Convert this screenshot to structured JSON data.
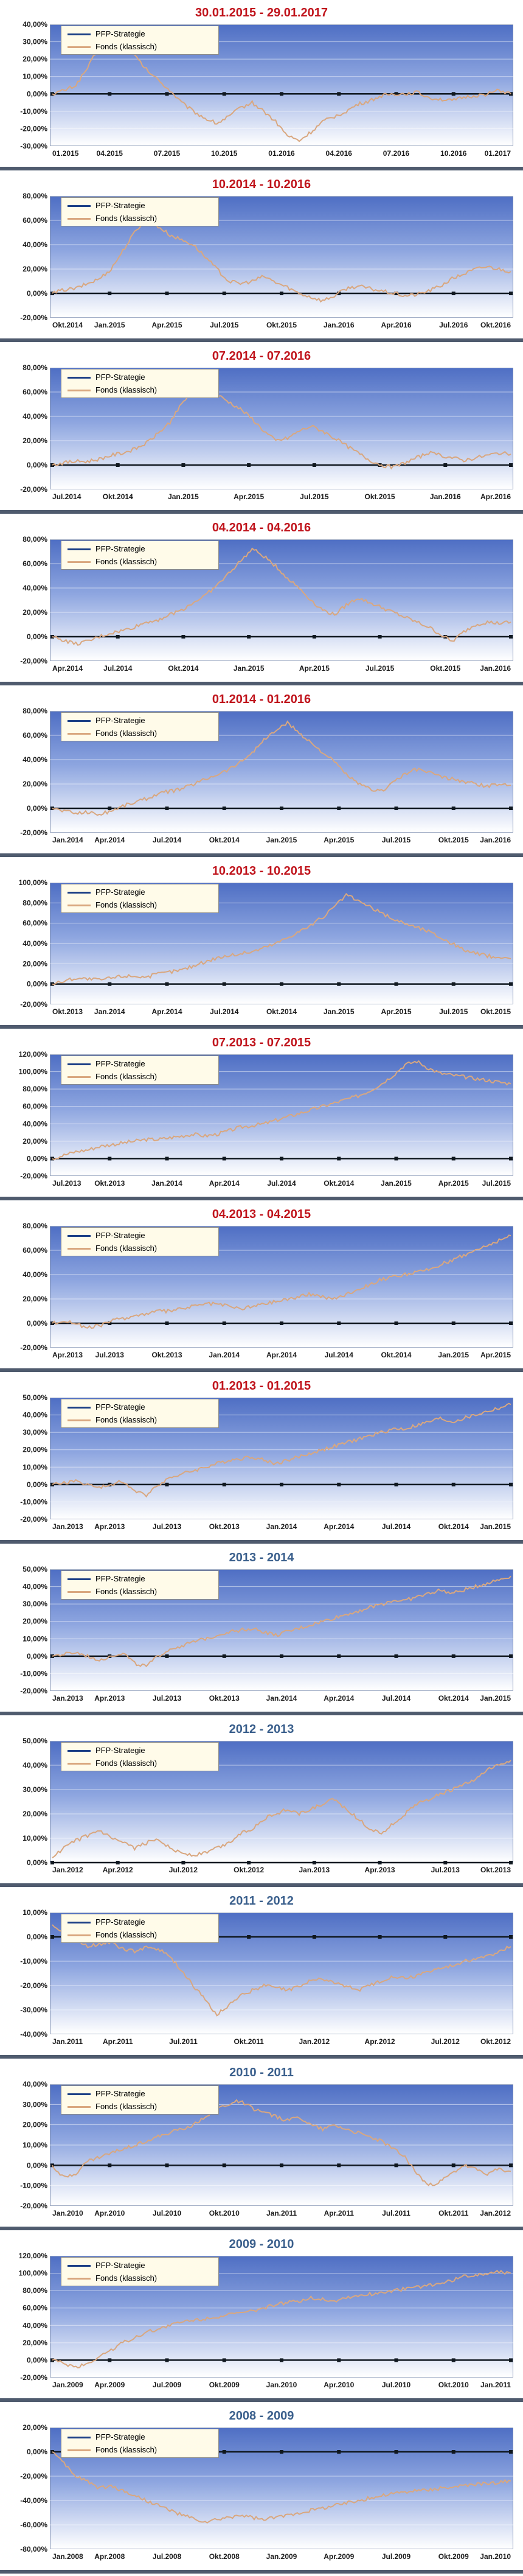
{
  "chart_data": [
    {
      "type": "line",
      "title": "30.01.2015 - 29.01.2017",
      "title_color": "#c0141c",
      "series": [
        {
          "name": "PFP-Strategie",
          "color": "#1c3f86"
        },
        {
          "name": "Fonds (klassisch)",
          "color": "#d9a77f"
        }
      ],
      "yticks": [
        "40,00%",
        "30,00%",
        "20,00%",
        "10,00%",
        "0,00%",
        "-10,00%",
        "-20,00%",
        "-30,00%"
      ],
      "ylim": [
        -30,
        40
      ],
      "xticks": [
        "01.2015",
        "04.2015",
        "07.2015",
        "10.2015",
        "01.2016",
        "04.2016",
        "07.2016",
        "10.2016",
        "01.2017"
      ],
      "fonds": [
        0,
        2,
        5,
        15,
        27,
        33,
        29,
        22,
        14,
        8,
        2,
        -5,
        -10,
        -14,
        -17,
        -13,
        -8,
        -5,
        -10,
        -16,
        -24,
        -27,
        -22,
        -16,
        -13,
        -10,
        -6,
        -4,
        -1,
        0,
        0,
        1,
        -2,
        -3,
        -4,
        -2,
        -1,
        0,
        2,
        0
      ]
    },
    {
      "type": "line",
      "title": "10.2014 - 10.2016",
      "title_color": "#c0141c",
      "series": [
        {
          "name": "PFP-Strategie",
          "color": "#1c3f86"
        },
        {
          "name": "Fonds (klassisch)",
          "color": "#d9a77f"
        }
      ],
      "yticks": [
        "80,00%",
        "60,00%",
        "40,00%",
        "20,00%",
        "0,00%",
        "-20,00%"
      ],
      "ylim": [
        -20,
        80
      ],
      "xticks": [
        "Okt.2014",
        "Jan.2015",
        "Apr.2015",
        "Jul.2015",
        "Okt.2015",
        "Jan.2016",
        "Apr.2016",
        "Jul.2016",
        "Okt.2016"
      ],
      "fonds": [
        0,
        3,
        4,
        8,
        12,
        20,
        35,
        50,
        62,
        55,
        48,
        44,
        40,
        30,
        20,
        10,
        8,
        10,
        14,
        9,
        5,
        0,
        -3,
        -6,
        -2,
        4,
        6,
        4,
        2,
        0,
        -2,
        -1,
        2,
        6,
        12,
        16,
        20,
        22,
        20,
        18
      ]
    },
    {
      "type": "line",
      "title": "07.2014 - 07.2016",
      "title_color": "#c0141c",
      "series": [
        {
          "name": "PFP-Strategie",
          "color": "#1c3f86"
        },
        {
          "name": "Fonds (klassisch)",
          "color": "#d9a77f"
        }
      ],
      "yticks": [
        "80,00%",
        "60,00%",
        "40,00%",
        "20,00%",
        "0,00%",
        "-20,00%"
      ],
      "ylim": [
        -20,
        80
      ],
      "xticks": [
        "Jul.2014",
        "Okt.2014",
        "Jan.2015",
        "Apr.2015",
        "Jul.2015",
        "Okt.2015",
        "Jan.2016",
        "Apr.2016"
      ],
      "fonds": [
        0,
        2,
        3,
        3,
        5,
        8,
        10,
        13,
        18,
        26,
        35,
        50,
        62,
        66,
        58,
        52,
        46,
        38,
        28,
        20,
        22,
        28,
        32,
        28,
        22,
        16,
        10,
        4,
        0,
        -2,
        2,
        6,
        10,
        8,
        6,
        4,
        6,
        8,
        10,
        9
      ]
    },
    {
      "type": "line",
      "title": "04.2014 - 04.2016",
      "title_color": "#c0141c",
      "series": [
        {
          "name": "PFP-Strategie",
          "color": "#1c3f86"
        },
        {
          "name": "Fonds (klassisch)",
          "color": "#d9a77f"
        }
      ],
      "yticks": [
        "80,00%",
        "60,00%",
        "40,00%",
        "20,00%",
        "0,00%",
        "-20,00%"
      ],
      "ylim": [
        -20,
        80
      ],
      "xticks": [
        "Apr.2014",
        "Jul.2014",
        "Okt.2014",
        "Jan.2015",
        "Apr.2015",
        "Jul.2015",
        "Okt.2015",
        "Jan.2016"
      ],
      "fonds": [
        0,
        -3,
        -6,
        -4,
        0,
        3,
        5,
        8,
        12,
        14,
        18,
        22,
        28,
        34,
        42,
        52,
        62,
        72,
        66,
        58,
        48,
        40,
        30,
        22,
        18,
        26,
        32,
        28,
        24,
        20,
        16,
        12,
        8,
        2,
        -4,
        4,
        10,
        12,
        11,
        12
      ]
    },
    {
      "type": "line",
      "title": "01.2014 - 01.2016",
      "title_color": "#c0141c",
      "series": [
        {
          "name": "PFP-Strategie",
          "color": "#1c3f86"
        },
        {
          "name": "Fonds (klassisch)",
          "color": "#d9a77f"
        }
      ],
      "yticks": [
        "80,00%",
        "60,00%",
        "40,00%",
        "20,00%",
        "0,00%",
        "-20,00%"
      ],
      "ylim": [
        -20,
        80
      ],
      "xticks": [
        "Jan.2014",
        "Apr.2014",
        "Jul.2014",
        "Okt.2014",
        "Jan.2015",
        "Apr.2015",
        "Jul.2015",
        "Okt.2015",
        "Jan.2016"
      ],
      "fonds": [
        0,
        -2,
        -4,
        -3,
        -5,
        -2,
        2,
        5,
        8,
        12,
        14,
        16,
        20,
        24,
        28,
        32,
        38,
        46,
        56,
        64,
        70,
        62,
        54,
        46,
        38,
        28,
        20,
        16,
        14,
        22,
        28,
        32,
        30,
        26,
        24,
        22,
        20,
        18,
        20,
        19
      ]
    },
    {
      "type": "line",
      "title": "10.2013 - 10.2015",
      "title_color": "#c0141c",
      "series": [
        {
          "name": "PFP-Strategie",
          "color": "#1c3f86"
        },
        {
          "name": "Fonds (klassisch)",
          "color": "#d9a77f"
        }
      ],
      "yticks": [
        "100,00%",
        "80,00%",
        "60,00%",
        "40,00%",
        "20,00%",
        "0,00%",
        "-20,00%"
      ],
      "ylim": [
        -20,
        100
      ],
      "xticks": [
        "Okt.2013",
        "Jan.2014",
        "Apr.2014",
        "Jul.2014",
        "Okt.2014",
        "Jan.2015",
        "Apr.2015",
        "Jul.2015",
        "Okt.2015"
      ],
      "fonds": [
        0,
        3,
        6,
        5,
        4,
        6,
        8,
        8,
        7,
        10,
        12,
        14,
        18,
        22,
        26,
        28,
        30,
        32,
        36,
        40,
        46,
        52,
        58,
        66,
        76,
        88,
        82,
        76,
        70,
        64,
        60,
        56,
        52,
        46,
        40,
        34,
        30,
        28,
        26,
        25
      ]
    },
    {
      "type": "line",
      "title": "07.2013 - 07.2015",
      "title_color": "#c0141c",
      "series": [
        {
          "name": "PFP-Strategie",
          "color": "#1c3f86"
        },
        {
          "name": "Fonds (klassisch)",
          "color": "#d9a77f"
        }
      ],
      "yticks": [
        "120,00%",
        "100,00%",
        "80,00%",
        "60,00%",
        "40,00%",
        "20,00%",
        "0,00%",
        "-20,00%"
      ],
      "ylim": [
        -20,
        120
      ],
      "xticks": [
        "Jul.2013",
        "Okt.2013",
        "Jan.2014",
        "Apr.2014",
        "Jul.2014",
        "Okt.2014",
        "Jan.2015",
        "Apr.2015",
        "Jul.2015"
      ],
      "fonds": [
        0,
        4,
        8,
        10,
        14,
        16,
        18,
        20,
        22,
        22,
        24,
        26,
        28,
        26,
        28,
        32,
        36,
        38,
        40,
        44,
        48,
        52,
        56,
        60,
        64,
        68,
        72,
        78,
        86,
        96,
        108,
        112,
        104,
        98,
        96,
        94,
        92,
        90,
        88,
        86
      ]
    },
    {
      "type": "line",
      "title": "04.2013 - 04.2015",
      "title_color": "#c0141c",
      "series": [
        {
          "name": "PFP-Strategie",
          "color": "#1c3f86"
        },
        {
          "name": "Fonds (klassisch)",
          "color": "#d9a77f"
        }
      ],
      "yticks": [
        "80,00%",
        "60,00%",
        "40,00%",
        "20,00%",
        "0,00%",
        "-20,00%"
      ],
      "ylim": [
        -20,
        80
      ],
      "xticks": [
        "Apr.2013",
        "Jul.2013",
        "Okt.2013",
        "Jan.2014",
        "Apr.2014",
        "Jul.2014",
        "Okt.2014",
        "Jan.2015",
        "Apr.2015"
      ],
      "fonds": [
        0,
        2,
        0,
        -4,
        -2,
        2,
        4,
        6,
        8,
        10,
        10,
        12,
        14,
        16,
        16,
        14,
        12,
        14,
        16,
        18,
        20,
        22,
        24,
        22,
        20,
        24,
        28,
        32,
        36,
        38,
        40,
        42,
        44,
        48,
        52,
        56,
        60,
        64,
        68,
        72
      ]
    },
    {
      "type": "line",
      "title": "01.2013 - 01.2015",
      "title_color": "#c0141c",
      "series": [
        {
          "name": "PFP-Strategie",
          "color": "#1c3f86"
        },
        {
          "name": "Fonds (klassisch)",
          "color": "#d9a77f"
        }
      ],
      "yticks": [
        "50,00%",
        "40,00%",
        "30,00%",
        "20,00%",
        "10,00%",
        "0,00%",
        "-10,00%",
        "-20,00%"
      ],
      "ylim": [
        -20,
        50
      ],
      "xticks": [
        "Jan.2013",
        "Apr.2013",
        "Jul.2013",
        "Okt.2013",
        "Jan.2014",
        "Apr.2014",
        "Jul.2014",
        "Okt.2014",
        "Jan.2015"
      ],
      "fonds": [
        0,
        1,
        2,
        0,
        -2,
        0,
        2,
        -4,
        -6,
        0,
        4,
        6,
        8,
        10,
        12,
        14,
        15,
        16,
        14,
        12,
        14,
        16,
        18,
        20,
        22,
        24,
        26,
        28,
        30,
        32,
        32,
        34,
        36,
        38,
        36,
        38,
        40,
        42,
        44,
        46
      ]
    },
    {
      "type": "line",
      "title": "2013 - 2014",
      "title_color": "#3a5f8c",
      "series": [
        {
          "name": "PFP-Strategie",
          "color": "#1c3f86"
        },
        {
          "name": "Fonds (klassisch)",
          "color": "#d9a77f"
        }
      ],
      "yticks": [
        "50,00%",
        "40,00%",
        "30,00%",
        "20,00%",
        "10,00%",
        "0,00%",
        "-10,00%",
        "-20,00%"
      ],
      "ylim": [
        -20,
        50
      ],
      "xticks": [
        "Jan.2013",
        "Apr.2013",
        "Jul.2013",
        "Okt.2013",
        "Jan.2014",
        "Apr.2014",
        "Jul.2014",
        "Okt.2014",
        "Jan.2015"
      ],
      "fonds": [
        0,
        1,
        2,
        0,
        -2,
        0,
        2,
        -4,
        -6,
        0,
        4,
        6,
        8,
        10,
        12,
        14,
        15,
        16,
        14,
        12,
        14,
        16,
        18,
        20,
        22,
        24,
        26,
        28,
        30,
        32,
        32,
        34,
        36,
        38,
        36,
        38,
        40,
        42,
        44,
        46
      ]
    },
    {
      "type": "line",
      "title": "2012 - 2013",
      "title_color": "#3a5f8c",
      "series": [
        {
          "name": "PFP-Strategie",
          "color": "#1c3f86"
        },
        {
          "name": "Fonds (klassisch)",
          "color": "#d9a77f"
        }
      ],
      "yticks": [
        "50,00%",
        "40,00%",
        "30,00%",
        "20,00%",
        "10,00%",
        "0,00%"
      ],
      "ylim": [
        0,
        50
      ],
      "xticks": [
        "Jan.2012",
        "Apr.2012",
        "Jul.2012",
        "Okt.2012",
        "Jan.2013",
        "Apr.2013",
        "Jul.2013",
        "Okt.2013"
      ],
      "fonds": [
        2,
        6,
        9,
        11,
        13,
        10,
        8,
        6,
        8,
        10,
        6,
        4,
        3,
        4,
        6,
        8,
        12,
        14,
        18,
        20,
        22,
        20,
        22,
        24,
        26,
        22,
        18,
        14,
        12,
        16,
        20,
        24,
        26,
        28,
        30,
        32,
        34,
        38,
        40,
        42
      ]
    },
    {
      "type": "line",
      "title": "2011 - 2012",
      "title_color": "#3a5f8c",
      "series": [
        {
          "name": "PFP-Strategie",
          "color": "#1c3f86"
        },
        {
          "name": "Fonds (klassisch)",
          "color": "#d9a77f"
        }
      ],
      "yticks": [
        "10,00%",
        "0,00%",
        "-10,00%",
        "-20,00%",
        "-30,00%",
        "-40,00%"
      ],
      "ylim": [
        -40,
        10
      ],
      "xticks": [
        "Jan.2011",
        "Apr.2011",
        "Jul.2011",
        "Okt.2011",
        "Jan.2012",
        "Apr.2012",
        "Jul.2012",
        "Okt.2012"
      ],
      "fonds": [
        5,
        2,
        -1,
        -4,
        -3,
        -2,
        -5,
        -6,
        -4,
        -5,
        -8,
        -14,
        -20,
        -26,
        -32,
        -28,
        -24,
        -22,
        -20,
        -21,
        -22,
        -20,
        -18,
        -17,
        -19,
        -20,
        -22,
        -20,
        -18,
        -16,
        -17,
        -16,
        -14,
        -13,
        -12,
        -10,
        -9,
        -8,
        -6,
        -4
      ]
    },
    {
      "type": "line",
      "title": "2010 - 2011",
      "title_color": "#3a5f8c",
      "series": [
        {
          "name": "PFP-Strategie",
          "color": "#1c3f86"
        },
        {
          "name": "Fonds (klassisch)",
          "color": "#d9a77f"
        }
      ],
      "yticks": [
        "40,00%",
        "30,00%",
        "20,00%",
        "10,00%",
        "0,00%",
        "-10,00%",
        "-20,00%"
      ],
      "ylim": [
        -20,
        40
      ],
      "xticks": [
        "Jan.2010",
        "Apr.2010",
        "Jul.2010",
        "Okt.2010",
        "Jan.2011",
        "Apr.2011",
        "Jul.2011",
        "Okt.2011",
        "Jan.2012"
      ],
      "fonds": [
        0,
        -6,
        -4,
        2,
        4,
        6,
        8,
        10,
        12,
        14,
        16,
        18,
        20,
        24,
        28,
        30,
        32,
        28,
        26,
        24,
        22,
        24,
        20,
        18,
        20,
        18,
        16,
        14,
        12,
        8,
        4,
        -4,
        -10,
        -8,
        -4,
        0,
        -2,
        -4,
        -2,
        -3
      ]
    },
    {
      "type": "line",
      "title": "2009 - 2010",
      "title_color": "#3a5f8c",
      "series": [
        {
          "name": "PFP-Strategie",
          "color": "#1c3f86"
        },
        {
          "name": "Fonds (klassisch)",
          "color": "#d9a77f"
        }
      ],
      "yticks": [
        "120,00%",
        "100,00%",
        "80,00%",
        "60,00%",
        "40,00%",
        "20,00%",
        "0,00%",
        "-20,00%"
      ],
      "ylim": [
        -20,
        120
      ],
      "xticks": [
        "Jan.2009",
        "Apr.2009",
        "Jul.2009",
        "Okt.2009",
        "Jan.2010",
        "Apr.2010",
        "Jul.2010",
        "Okt.2010",
        "Jan.2011"
      ],
      "fonds": [
        0,
        -4,
        -8,
        -4,
        4,
        12,
        20,
        26,
        32,
        36,
        40,
        44,
        46,
        48,
        50,
        52,
        54,
        56,
        60,
        64,
        66,
        68,
        72,
        70,
        68,
        72,
        74,
        76,
        78,
        80,
        82,
        84,
        86,
        88,
        92,
        96,
        98,
        100,
        102,
        100
      ]
    },
    {
      "type": "line",
      "title": "2008 - 2009",
      "title_color": "#3a5f8c",
      "series": [
        {
          "name": "PFP-Strategie",
          "color": "#1c3f86"
        },
        {
          "name": "Fonds (klassisch)",
          "color": "#d9a77f"
        }
      ],
      "yticks": [
        "20,00%",
        "0,00%",
        "-20,00%",
        "-40,00%",
        "-60,00%",
        "-80,00%"
      ],
      "ylim": [
        -80,
        20
      ],
      "xticks": [
        "Jan.2008",
        "Apr.2008",
        "Jul.2008",
        "Okt.2008",
        "Jan.2009",
        "Apr.2009",
        "Jul.2009",
        "Okt.2009",
        "Jan.2010"
      ],
      "fonds": [
        0,
        -10,
        -20,
        -24,
        -30,
        -28,
        -32,
        -36,
        -40,
        -44,
        -48,
        -52,
        -55,
        -58,
        -56,
        -54,
        -52,
        -54,
        -56,
        -54,
        -52,
        -50,
        -48,
        -46,
        -44,
        -42,
        -40,
        -38,
        -36,
        -34,
        -33,
        -32,
        -31,
        -30,
        -29,
        -28,
        -27,
        -26,
        -25,
        -24
      ]
    }
  ]
}
